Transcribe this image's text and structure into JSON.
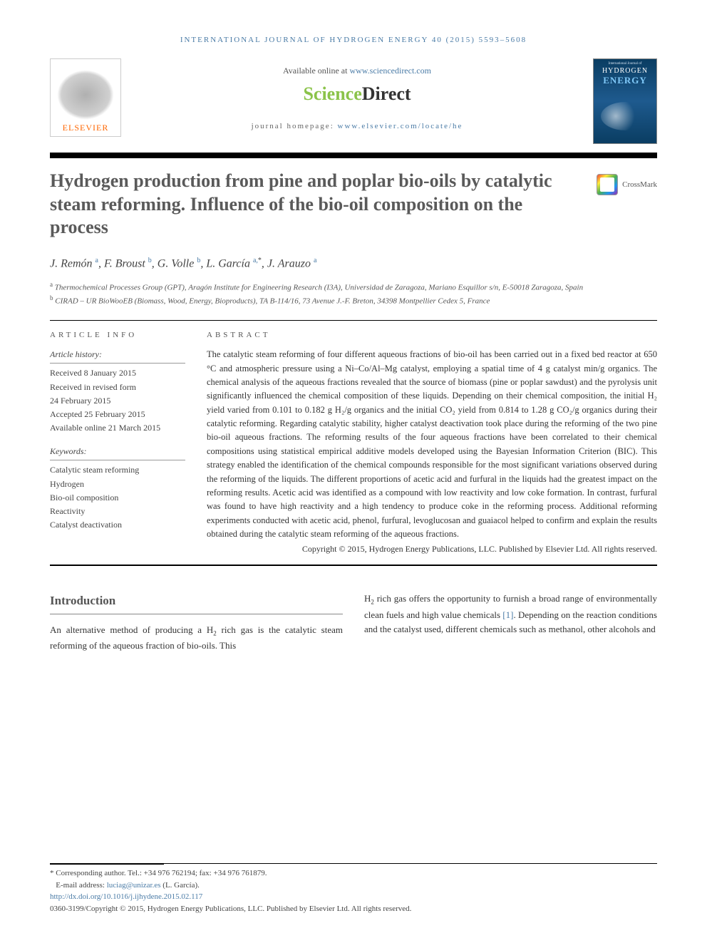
{
  "running_head": "international journal of hydrogen energy 40 (2015) 5593–5608",
  "header": {
    "available_text": "Available online at ",
    "available_link": "www.sciencedirect.com",
    "sd_logo_sci": "Science",
    "sd_logo_dir": "Direct",
    "journal_hp_label": "journal homepage: ",
    "journal_hp_link": "www.elsevier.com/locate/he",
    "elsevier_label": "ELSEVIER",
    "cover": {
      "top": "International Journal of",
      "hy": "HYDROGEN",
      "en": "ENERGY"
    }
  },
  "title": "Hydrogen production from pine and poplar bio-oils by catalytic steam reforming. Influence of the bio-oil composition on the process",
  "crossmark_label": "CrossMark",
  "authors_html": "J. Remón <sup class=\"affsup\">a</sup>, F. Broust <sup class=\"affsup\">b</sup>, G. Volle <sup class=\"affsup\">b</sup>, L. García <sup class=\"affsup\">a,</sup><sup>*</sup>, J. Arauzo <sup class=\"affsup\">a</sup>",
  "affiliations": {
    "a": "Thermochemical Processes Group (GPT), Aragón Institute for Engineering Research (I3A), Universidad de Zaragoza, Mariano Esquillor s/n, E-50018 Zaragoza, Spain",
    "b": "CIRAD – UR BioWooEB (Biomass, Wood, Energy, Bioproducts), TA B-114/16, 73 Avenue J.-F. Breton, 34398 Montpellier Cedex 5, France"
  },
  "info": {
    "heading": "article info",
    "history_label": "Article history:",
    "history": [
      "Received 8 January 2015",
      "Received in revised form",
      "24 February 2015",
      "Accepted 25 February 2015",
      "Available online 21 March 2015"
    ],
    "keywords_label": "Keywords:",
    "keywords": [
      "Catalytic steam reforming",
      "Hydrogen",
      "Bio-oil composition",
      "Reactivity",
      "Catalyst deactivation"
    ]
  },
  "abstract": {
    "heading": "abstract",
    "text": "The catalytic steam reforming of four different aqueous fractions of bio-oil has been carried out in a fixed bed reactor at 650 °C and atmospheric pressure using a Ni–Co/Al–Mg catalyst, employing a spatial time of 4 g catalyst min/g organics. The chemical analysis of the aqueous fractions revealed that the source of biomass (pine or poplar sawdust) and the pyrolysis unit significantly influenced the chemical composition of these liquids. Depending on their chemical composition, the initial H₂ yield varied from 0.101 to 0.182 g H₂/g organics and the initial CO₂ yield from 0.814 to 1.28 g CO₂/g organics during their catalytic reforming. Regarding catalytic stability, higher catalyst deactivation took place during the reforming of the two pine bio-oil aqueous fractions. The reforming results of the four aqueous fractions have been correlated to their chemical compositions using statistical empirical additive models developed using the Bayesian Information Criterion (BIC). This strategy enabled the identification of the chemical compounds responsible for the most significant variations observed during the reforming of the liquids. The different proportions of acetic acid and furfural in the liquids had the greatest impact on the reforming results. Acetic acid was identified as a compound with low reactivity and low coke formation. In contrast, furfural was found to have high reactivity and a high tendency to produce coke in the reforming process. Additional reforming experiments conducted with acetic acid, phenol, furfural, levoglucosan and guaiacol helped to confirm and explain the results obtained during the catalytic steam reforming of the aqueous fractions.",
    "copyright": "Copyright © 2015, Hydrogen Energy Publications, LLC. Published by Elsevier Ltd. All rights reserved."
  },
  "body": {
    "intro_heading": "Introduction",
    "left": "An alternative method of producing a H₂ rich gas is the catalytic steam reforming of the aqueous fraction of bio-oils. This",
    "right": "H₂ rich gas offers the opportunity to furnish a broad range of environmentally clean fuels and high value chemicals [1]. Depending on the reaction conditions and the catalyst used, different chemicals such as methanol, other alcohols and"
  },
  "footnotes": {
    "corr": "* Corresponding author. Tel.: +34 976 762194; fax: +34 976 761879.",
    "email_label": "E-mail address: ",
    "email": "luciag@unizar.es",
    "email_name": " (L. García).",
    "doi": "http://dx.doi.org/10.1016/j.ijhydene.2015.02.117",
    "issn": "0360-3199/Copyright © 2015, Hydrogen Energy Publications, LLC. Published by Elsevier Ltd. All rights reserved."
  },
  "colors": {
    "link": "#4a7ba6",
    "orange": "#ff6600",
    "green": "#8bc34a",
    "title_gray": "#5a5a5a",
    "text": "#333333"
  }
}
